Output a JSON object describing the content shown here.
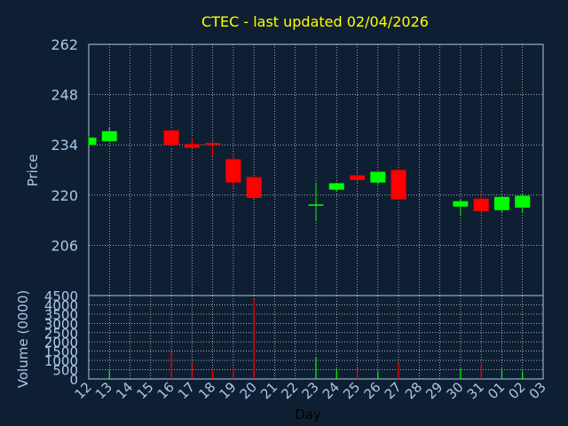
{
  "chart_data": [
    {
      "type": "candlestick",
      "title": "CTEC - last updated 02/04/2026",
      "ylabel": "Price",
      "ylim": [
        192,
        262
      ],
      "yticks": [
        206,
        220,
        234,
        248,
        262
      ],
      "grid": true,
      "categories": [
        "12",
        "13",
        "14",
        "15",
        "16",
        "17",
        "18",
        "19",
        "20",
        "21",
        "22",
        "23",
        "24",
        "25",
        "26",
        "27",
        "28",
        "29",
        "30",
        "31",
        "01",
        "02",
        "03"
      ],
      "candles": [
        {
          "day": "12",
          "open": 234.0,
          "high": 236.5,
          "low": 234.0,
          "close": 236.0,
          "color": "up"
        },
        {
          "day": "13",
          "open": 235.0,
          "high": 238.8,
          "low": 234.8,
          "close": 237.8,
          "color": "up"
        },
        {
          "day": "16",
          "open": 238.0,
          "high": 238.3,
          "low": 233.5,
          "close": 234.0,
          "color": "down"
        },
        {
          "day": "17",
          "open": 234.2,
          "high": 236.0,
          "low": 233.0,
          "close": 233.2,
          "color": "down"
        },
        {
          "day": "18",
          "open": 234.5,
          "high": 235.0,
          "low": 231.0,
          "close": 234.0,
          "color": "down"
        },
        {
          "day": "19",
          "open": 230.0,
          "high": 231.5,
          "low": 222.0,
          "close": 223.5,
          "color": "down"
        },
        {
          "day": "20",
          "open": 225.0,
          "high": 225.3,
          "low": 219.0,
          "close": 219.2,
          "color": "down"
        },
        {
          "day": "23",
          "open": 217.2,
          "high": 223.5,
          "low": 212.7,
          "close": 217.4,
          "color": "up"
        },
        {
          "day": "24",
          "open": 221.5,
          "high": 223.5,
          "low": 221.0,
          "close": 223.3,
          "color": "up"
        },
        {
          "day": "25",
          "open": 225.5,
          "high": 226.0,
          "low": 223.5,
          "close": 224.2,
          "color": "down"
        },
        {
          "day": "26",
          "open": 223.5,
          "high": 226.5,
          "low": 223.0,
          "close": 226.5,
          "color": "up"
        },
        {
          "day": "27",
          "open": 227.0,
          "high": 227.3,
          "low": 218.7,
          "close": 218.8,
          "color": "down"
        },
        {
          "day": "30",
          "open": 216.8,
          "high": 218.8,
          "low": 214.5,
          "close": 218.3,
          "color": "up"
        },
        {
          "day": "31",
          "open": 219.0,
          "high": 221.0,
          "low": 215.2,
          "close": 215.5,
          "color": "down"
        },
        {
          "day": "01",
          "open": 215.8,
          "high": 219.7,
          "low": 215.3,
          "close": 219.5,
          "color": "up"
        },
        {
          "day": "02",
          "open": 216.5,
          "high": 220.5,
          "low": 215.0,
          "close": 219.8,
          "color": "up"
        }
      ]
    },
    {
      "type": "bar",
      "xlabel": "Day",
      "ylabel": "Volume (0000)",
      "ylim": [
        0,
        4500
      ],
      "yticks": [
        0,
        500,
        1000,
        1500,
        2000,
        2500,
        3000,
        3500,
        4000,
        4500
      ],
      "grid": true,
      "categories": [
        "12",
        "13",
        "14",
        "15",
        "16",
        "17",
        "18",
        "19",
        "20",
        "21",
        "22",
        "23",
        "24",
        "25",
        "26",
        "27",
        "28",
        "29",
        "30",
        "31",
        "01",
        "02",
        "03"
      ],
      "volumes": [
        {
          "day": "13",
          "value": 500,
          "color": "up"
        },
        {
          "day": "16",
          "value": 1450,
          "color": "down"
        },
        {
          "day": "17",
          "value": 850,
          "color": "down"
        },
        {
          "day": "18",
          "value": 500,
          "color": "down"
        },
        {
          "day": "19",
          "value": 650,
          "color": "down"
        },
        {
          "day": "20",
          "value": 4300,
          "color": "down"
        },
        {
          "day": "23",
          "value": 1150,
          "color": "up"
        },
        {
          "day": "24",
          "value": 550,
          "color": "up"
        },
        {
          "day": "25",
          "value": 550,
          "color": "down"
        },
        {
          "day": "26",
          "value": 400,
          "color": "up"
        },
        {
          "day": "27",
          "value": 850,
          "color": "down"
        },
        {
          "day": "30",
          "value": 550,
          "color": "up"
        },
        {
          "day": "31",
          "value": 800,
          "color": "down"
        },
        {
          "day": "01",
          "value": 550,
          "color": "up"
        },
        {
          "day": "02",
          "value": 400,
          "color": "up"
        }
      ]
    }
  ],
  "colors": {
    "background": "#0f1f33",
    "up": "#00ff00",
    "down": "#ff0000",
    "grid": "#ffffff",
    "axis": "#a8c8e8",
    "title": "#ffff00",
    "xlabel": "#000000"
  }
}
